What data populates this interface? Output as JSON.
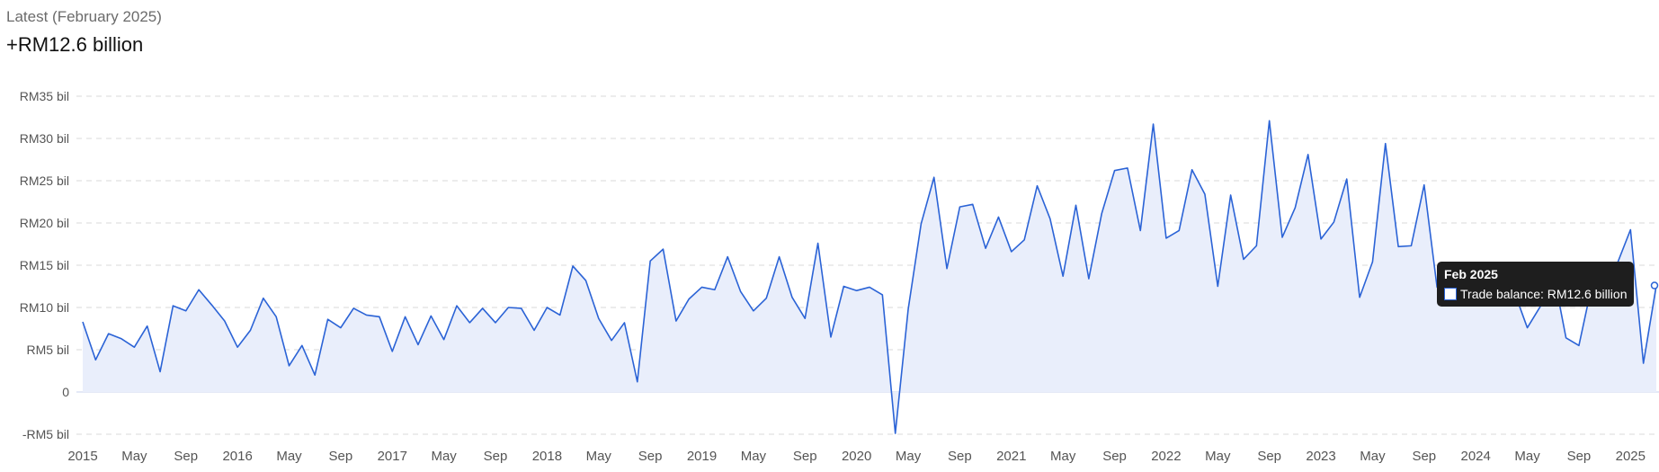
{
  "header": {
    "latest_label": "Latest (February 2025)",
    "latest_value": "+RM12.6 billion"
  },
  "tooltip": {
    "title": "Feb 2025",
    "series_label": "Trade balance",
    "value_text": "RM12.6 billion"
  },
  "colors": {
    "line": "#2b63d6",
    "area": "#e9eefb",
    "grid": "#d8d8d8",
    "tooltip_bg": "#1e1e1e"
  },
  "chart_data": {
    "type": "area",
    "title": "",
    "xlabel": "",
    "ylabel": "",
    "x_start": "2015-01",
    "x_end": "2025-02",
    "ylim": [
      -5,
      35
    ],
    "y_ticks": [
      -5,
      0,
      5,
      10,
      15,
      20,
      25,
      30,
      35
    ],
    "y_tick_labels": [
      "-RM5 bil",
      "0",
      "RM5 bil",
      "RM10 bil",
      "RM15 bil",
      "RM20 bil",
      "RM25 bil",
      "RM30 bil",
      "RM35 bil"
    ],
    "x_tick_labels": [
      "2015",
      "May",
      "Sep",
      "2016",
      "May",
      "Sep",
      "2017",
      "May",
      "Sep",
      "2018",
      "May",
      "Sep",
      "2019",
      "May",
      "Sep",
      "2020",
      "May",
      "Sep",
      "2021",
      "May",
      "Sep",
      "2022",
      "May",
      "Sep",
      "2023",
      "May",
      "Sep",
      "2024",
      "May",
      "Sep",
      "2025"
    ],
    "grid": true,
    "series": [
      {
        "unit": "RM billion",
        "values": [
          8.3,
          3.8,
          6.9,
          6.3,
          5.3,
          7.8,
          2.4,
          10.2,
          9.6,
          12.1,
          10.3,
          8.4,
          5.3,
          7.3,
          11.1,
          8.9,
          3.1,
          5.5,
          2.0,
          8.6,
          7.6,
          9.9,
          9.1,
          8.9,
          4.8,
          8.9,
          5.6,
          9.0,
          6.2,
          10.2,
          8.2,
          9.9,
          8.2,
          10.0,
          9.9,
          7.3,
          10.0,
          9.1,
          14.9,
          13.2,
          8.7,
          6.1,
          8.2,
          1.2,
          15.5,
          16.9,
          8.4,
          11.0,
          12.4,
          12.1,
          16.0,
          11.9,
          9.6,
          11.1,
          16.0,
          11.2,
          8.7,
          17.6,
          6.5,
          12.5,
          12.0,
          12.4,
          11.5,
          -4.9,
          9.8,
          19.9,
          25.4,
          14.6,
          21.9,
          22.2,
          17.0,
          20.7,
          16.6,
          18.0,
          24.4,
          20.5,
          13.7,
          22.1,
          13.4,
          21.1,
          26.2,
          26.5,
          19.1,
          31.7,
          18.2,
          19.1,
          26.3,
          23.4,
          12.5,
          23.3,
          15.7,
          17.3,
          32.1,
          18.3,
          21.8,
          28.1,
          18.1,
          20.1,
          25.2,
          11.2,
          15.4,
          29.4,
          17.2,
          17.3,
          24.5,
          12.4,
          12.1,
          11.9,
          11.4,
          11.2,
          12.5,
          11.8,
          7.6,
          10.1,
          14.3,
          6.4,
          5.5,
          12.6,
          11.6,
          15.3,
          19.2,
          3.4,
          12.6
        ]
      }
    ]
  }
}
